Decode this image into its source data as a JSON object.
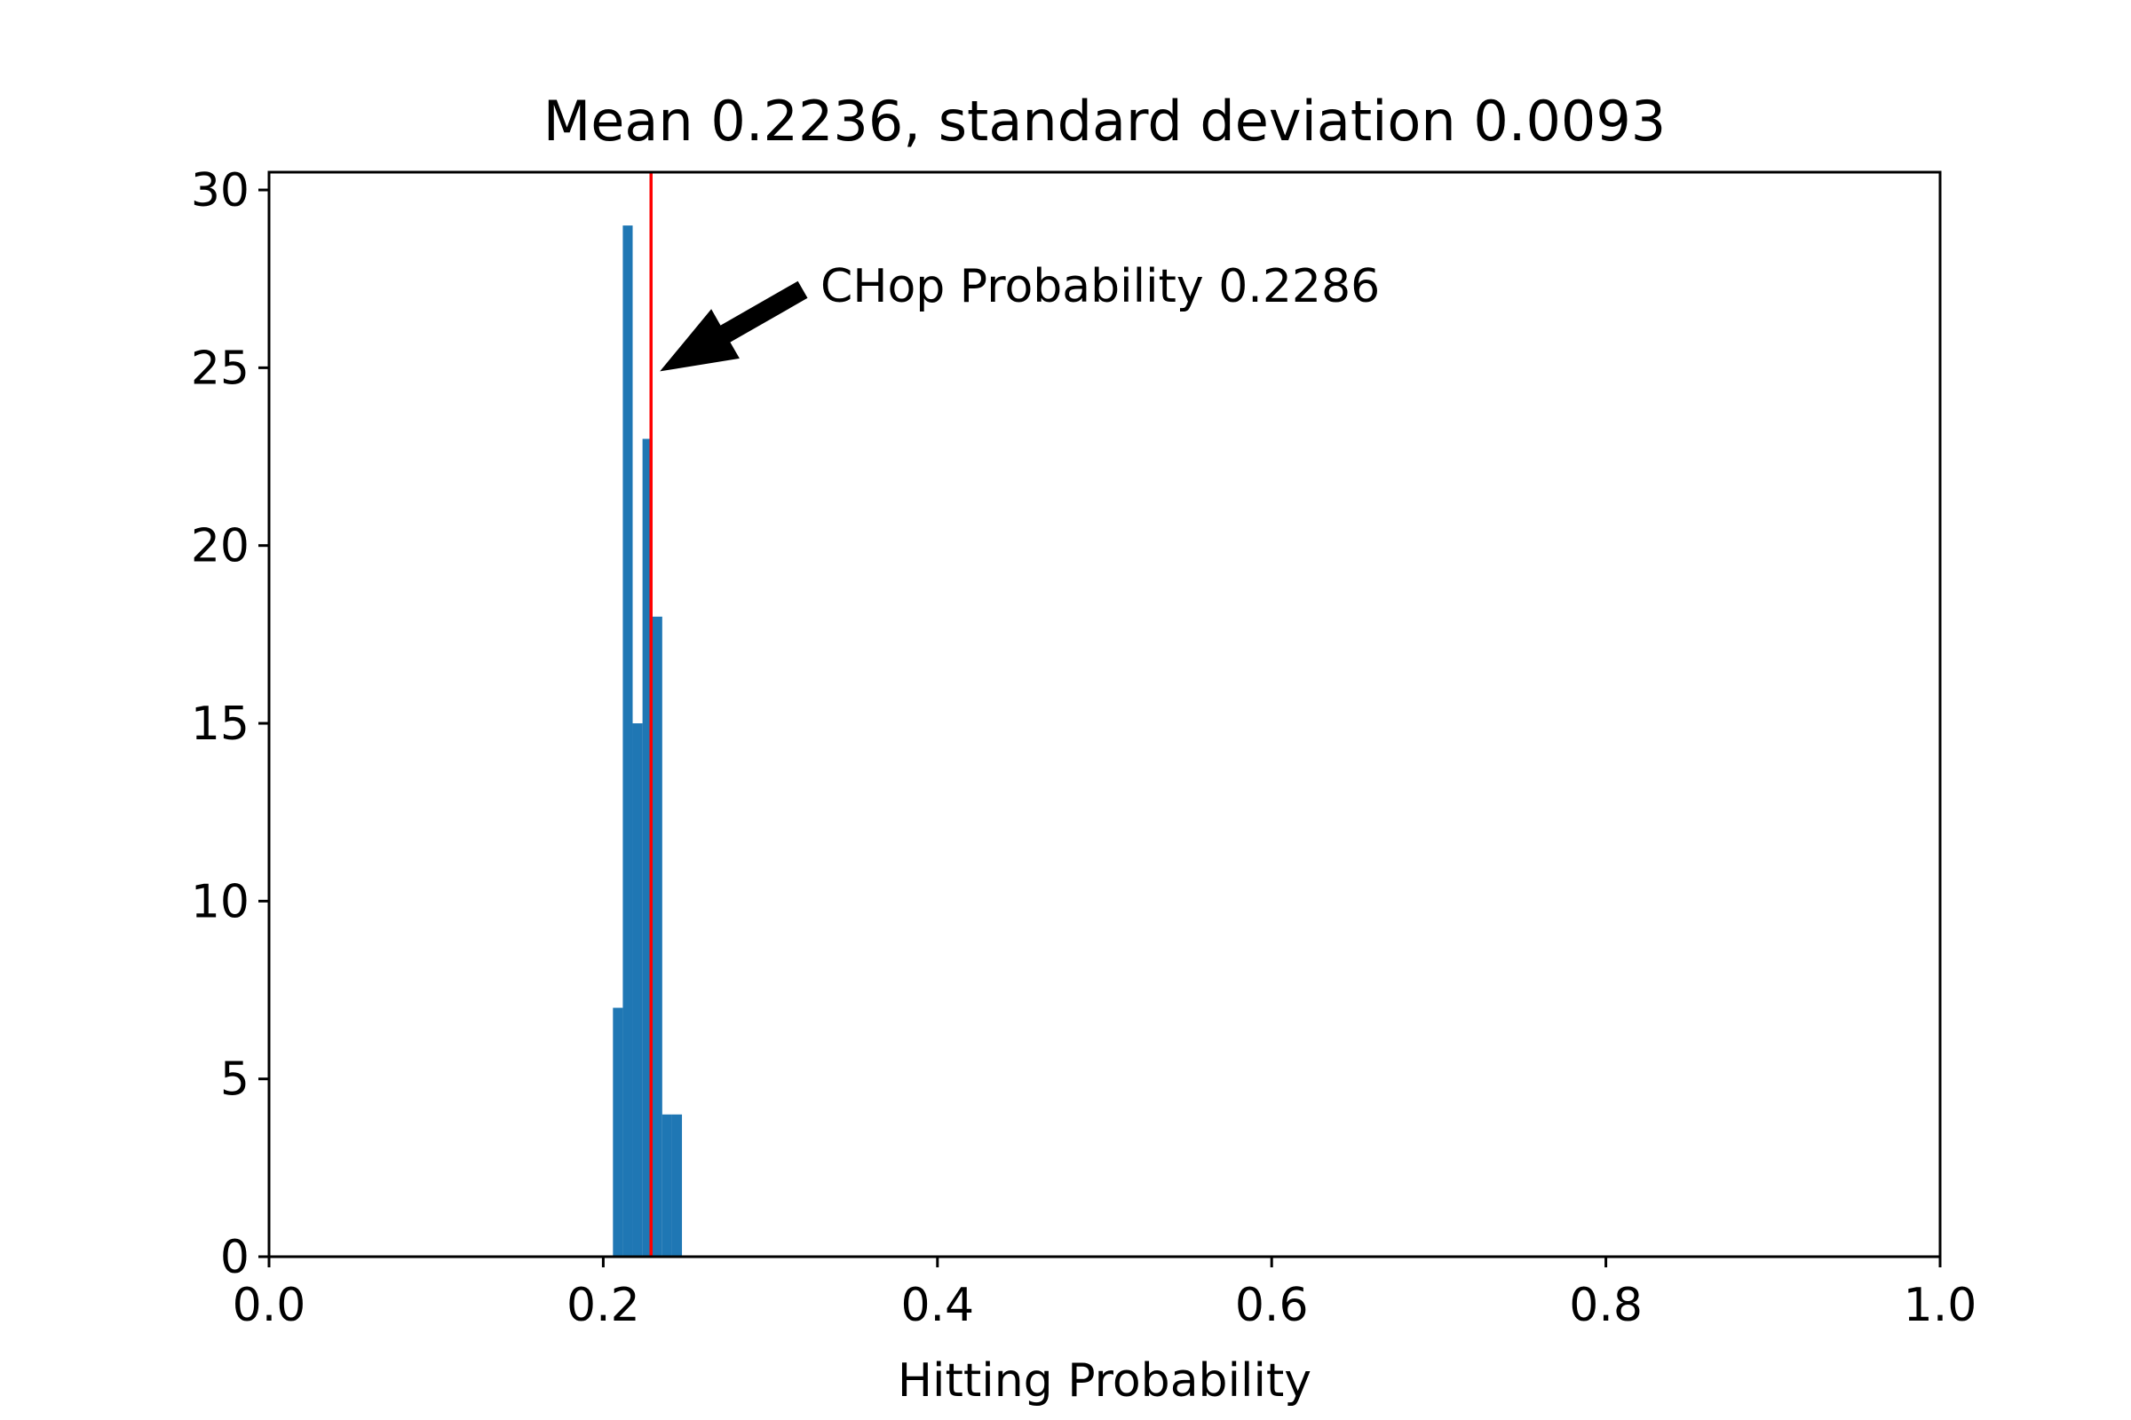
{
  "chart_data": {
    "type": "bar",
    "title": "Mean 0.2236, standard deviation 0.0093",
    "xlabel": "Hitting Probability",
    "ylabel": "",
    "xlim": [
      0.0,
      1.0
    ],
    "ylim": [
      0,
      30.5
    ],
    "grid": false,
    "x_ticks": [
      "0.0",
      "0.2",
      "0.4",
      "0.6",
      "0.8",
      "1.0"
    ],
    "y_ticks": [
      "0",
      "5",
      "10",
      "15",
      "20",
      "25",
      "30"
    ],
    "bin_edges": [
      0.2058,
      0.2117,
      0.2176,
      0.2235,
      0.2294,
      0.2353,
      0.2412,
      0.2471
    ],
    "values": [
      7,
      29,
      15,
      23,
      18,
      4,
      4
    ],
    "bar_color": "#1f77b4",
    "reference_line": {
      "x": 0.2286,
      "color": "#ff0000"
    },
    "annotation": {
      "text": "CHop Probability 0.2286",
      "text_x": 0.33,
      "text_y": 27.3,
      "arrow_target_x": 0.2286,
      "arrow_target_y": 25.0
    }
  }
}
